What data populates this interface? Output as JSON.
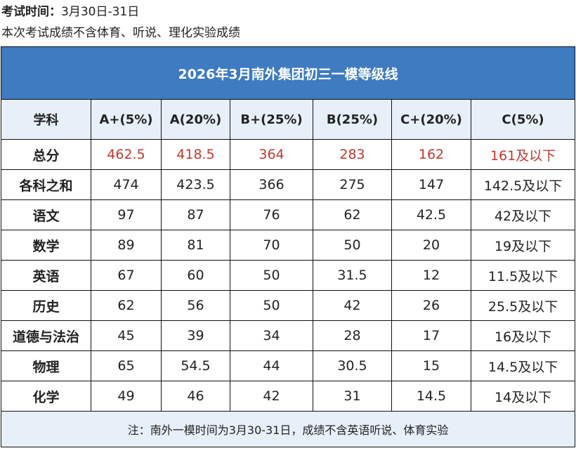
{
  "exam": {
    "time_label": "考试时间：",
    "time_value": "3月30日-31日",
    "note_line": "本次考试成绩不含体育、听说、理化实验成绩"
  },
  "table": {
    "title": "2026年3月南外集团初三一模等级线",
    "headers": [
      "学科",
      "A+(5%)",
      "A(20%)",
      "B+(25%)",
      "B(25%)",
      "C+(20%)",
      "C(5%)"
    ],
    "rows": [
      {
        "subject": "总分",
        "values": [
          "462.5",
          "418.5",
          "364",
          "283",
          "162",
          "161及以下"
        ]
      },
      {
        "subject": "各科之和",
        "values": [
          "474",
          "423.5",
          "366",
          "275",
          "147",
          "142.5及以下"
        ]
      },
      {
        "subject": "语文",
        "values": [
          "97",
          "87",
          "76",
          "62",
          "42.5",
          "42及以下"
        ]
      },
      {
        "subject": "数学",
        "values": [
          "89",
          "81",
          "70",
          "50",
          "20",
          "19及以下"
        ]
      },
      {
        "subject": "英语",
        "values": [
          "67",
          "60",
          "50",
          "31.5",
          "12",
          "11.5及以下"
        ]
      },
      {
        "subject": "历史",
        "values": [
          "62",
          "56",
          "50",
          "42",
          "26",
          "25.5及以下"
        ]
      },
      {
        "subject": "道德与法治",
        "values": [
          "45",
          "39",
          "34",
          "28",
          "17",
          "16及以下"
        ]
      },
      {
        "subject": "物理",
        "values": [
          "65",
          "54.5",
          "44",
          "30.5",
          "15",
          "14.5及以下"
        ]
      },
      {
        "subject": "化学",
        "values": [
          "49",
          "46",
          "42",
          "31",
          "14.5",
          "14及以下"
        ]
      }
    ],
    "footnote": "注：南外一模时间为3月30-31日，成绩不含英语听说、体育实验"
  },
  "colors": {
    "title_bg": "#3e7bc1",
    "header_bg": "#e7eff8",
    "total_row_text": "#c0392b"
  }
}
